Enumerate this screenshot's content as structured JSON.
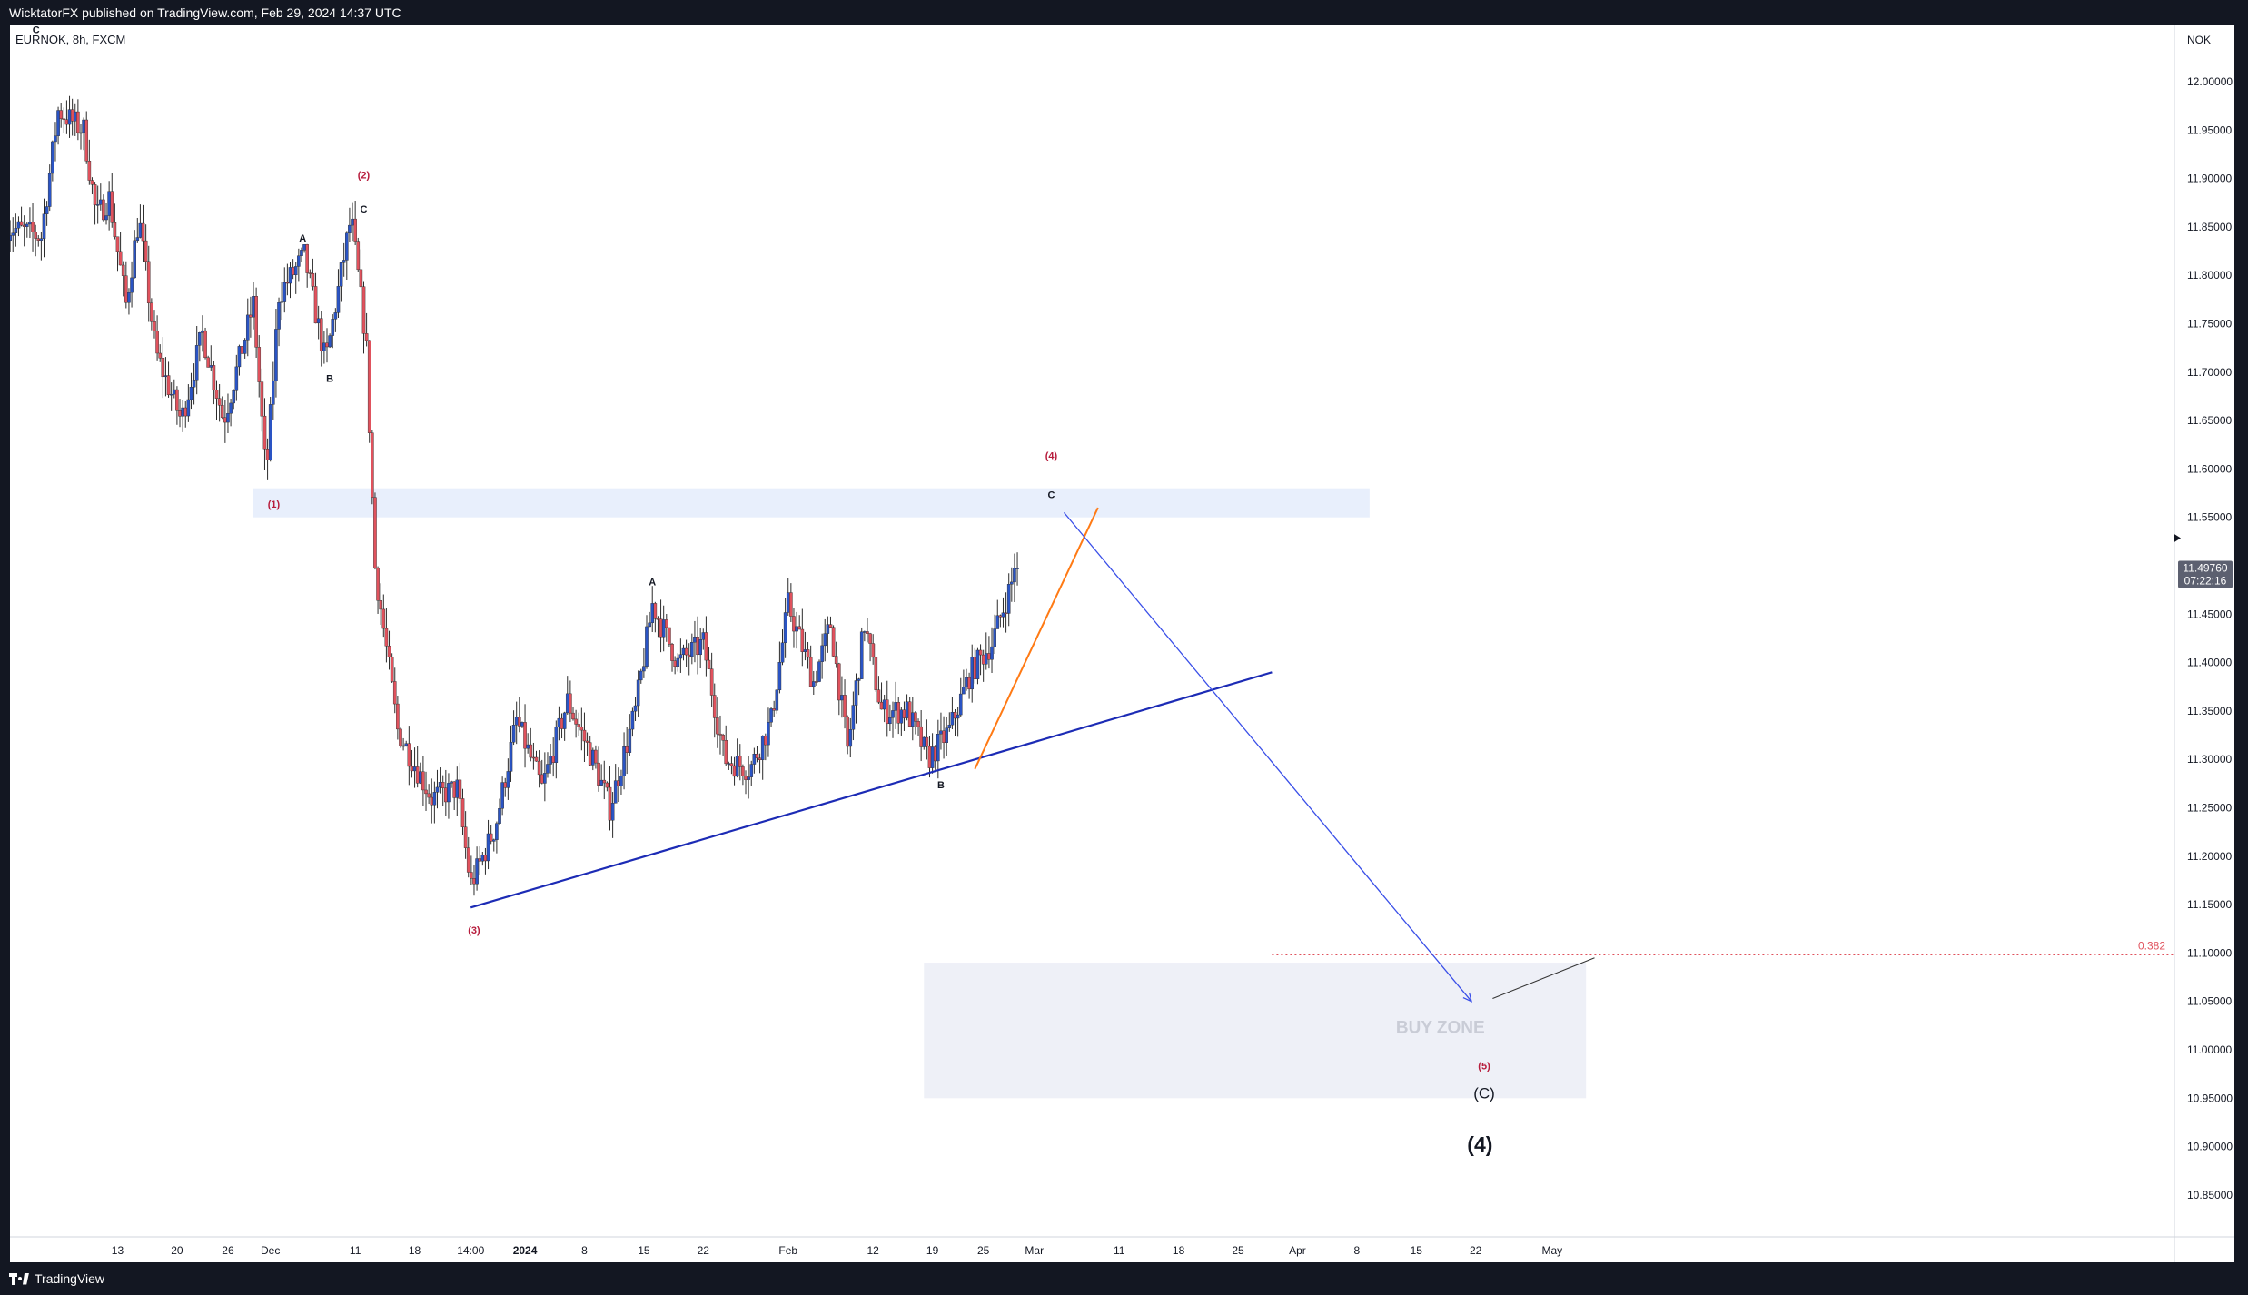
{
  "header": {
    "publisher_line": "WicktatorFX published on TradingView.com, Feb 29, 2024 14:37 UTC"
  },
  "footer": {
    "brand": "TradingView"
  },
  "chart_data": {
    "type": "candlestick",
    "symbol_label": "EURNOK, 8h, FXCM",
    "currency_label": "NOK",
    "ylim": [
      10.8,
      12.08
    ],
    "y_ticks": [
      "12.00000",
      "11.95000",
      "11.90000",
      "11.85000",
      "11.80000",
      "11.75000",
      "11.70000",
      "11.65000",
      "11.60000",
      "11.55000",
      "11.50000",
      "11.45000",
      "11.40000",
      "11.35000",
      "11.30000",
      "11.25000",
      "11.20000",
      "11.15000",
      "11.10000",
      "11.05000",
      "11.00000",
      "10.95000",
      "10.90000",
      "10.85000"
    ],
    "x_ticks": [
      {
        "label": "13",
        "day": 13
      },
      {
        "label": "20",
        "day": 20
      },
      {
        "label": "26",
        "day": 26
      },
      {
        "label": "Dec",
        "day": 31
      },
      {
        "label": "11",
        "day": 41
      },
      {
        "label": "18",
        "day": 48
      },
      {
        "label": "14:00",
        "day": 54.6
      },
      {
        "label": "2024",
        "day": 61
      },
      {
        "label": "8",
        "day": 68
      },
      {
        "label": "15",
        "day": 75
      },
      {
        "label": "22",
        "day": 82
      },
      {
        "label": "Feb",
        "day": 92
      },
      {
        "label": "12",
        "day": 102
      },
      {
        "label": "19",
        "day": 109
      },
      {
        "label": "25",
        "day": 115
      },
      {
        "label": "Mar",
        "day": 121
      },
      {
        "label": "11",
        "day": 131
      },
      {
        "label": "18",
        "day": 138
      },
      {
        "label": "25",
        "day": 145
      },
      {
        "label": "Apr",
        "day": 152
      },
      {
        "label": "8",
        "day": 159
      },
      {
        "label": "15",
        "day": 166
      },
      {
        "label": "22",
        "day": 173
      },
      {
        "label": "May",
        "day": 182
      }
    ],
    "current_price": {
      "label": "11.49760",
      "countdown": "07:22:16",
      "value": 11.4976
    },
    "colors": {
      "up": "#2a54c4",
      "down": "#e0525d",
      "wave_label": "#b71c3c",
      "trendline": "#1c2bb5",
      "orange": "#ff7a14",
      "projection": "#3a4fe8",
      "zone": "#eef0f7",
      "resistance_zone": "#e8effc",
      "fib": "#e0525d"
    },
    "candle_anchors": [
      {
        "day": 0,
        "price": 11.85
      },
      {
        "day": 4,
        "price": 11.84
      },
      {
        "day": 6,
        "price": 11.97
      },
      {
        "day": 9,
        "price": 11.95
      },
      {
        "day": 10.5,
        "price": 11.86
      },
      {
        "day": 12,
        "price": 11.88
      },
      {
        "day": 14,
        "price": 11.77
      },
      {
        "day": 15.5,
        "price": 11.86
      },
      {
        "day": 17.5,
        "price": 11.72
      },
      {
        "day": 20.5,
        "price": 11.65
      },
      {
        "day": 23,
        "price": 11.74
      },
      {
        "day": 25.5,
        "price": 11.65
      },
      {
        "day": 29,
        "price": 11.77
      },
      {
        "day": 30.5,
        "price": 11.59
      },
      {
        "day": 32,
        "price": 11.78
      },
      {
        "day": 35,
        "price": 11.82
      },
      {
        "day": 37.5,
        "price": 11.71
      },
      {
        "day": 40.5,
        "price": 11.86
      },
      {
        "day": 42.3,
        "price": 11.73
      },
      {
        "day": 43.3,
        "price": 11.5
      },
      {
        "day": 46,
        "price": 11.33
      },
      {
        "day": 50,
        "price": 11.26
      },
      {
        "day": 53,
        "price": 11.27
      },
      {
        "day": 54.6,
        "price": 11.17
      },
      {
        "day": 57.5,
        "price": 11.23
      },
      {
        "day": 60,
        "price": 11.34
      },
      {
        "day": 63,
        "price": 11.27
      },
      {
        "day": 66,
        "price": 11.36
      },
      {
        "day": 69,
        "price": 11.3
      },
      {
        "day": 71,
        "price": 11.25
      },
      {
        "day": 74,
        "price": 11.35
      },
      {
        "day": 76,
        "price": 11.46
      },
      {
        "day": 79,
        "price": 11.4
      },
      {
        "day": 82,
        "price": 11.42
      },
      {
        "day": 84.5,
        "price": 11.3
      },
      {
        "day": 87.5,
        "price": 11.29
      },
      {
        "day": 90,
        "price": 11.34
      },
      {
        "day": 92,
        "price": 11.46
      },
      {
        "day": 95,
        "price": 11.38
      },
      {
        "day": 97,
        "price": 11.44
      },
      {
        "day": 99,
        "price": 11.31
      },
      {
        "day": 101,
        "price": 11.44
      },
      {
        "day": 103,
        "price": 11.35
      },
      {
        "day": 106,
        "price": 11.35
      },
      {
        "day": 108.5,
        "price": 11.3
      },
      {
        "day": 111,
        "price": 11.33
      },
      {
        "day": 113.5,
        "price": 11.39
      },
      {
        "day": 116,
        "price": 11.42
      },
      {
        "day": 119,
        "price": 11.5
      }
    ],
    "annotations": [
      {
        "text": "C",
        "kind": "letter",
        "day": 3.4,
        "price": 12.05
      },
      {
        "text": "(2)",
        "kind": "wave",
        "day": 42,
        "price": 11.9
      },
      {
        "text": "C",
        "kind": "letter",
        "day": 42,
        "price": 11.865
      },
      {
        "text": "A",
        "kind": "letter",
        "day": 34.8,
        "price": 11.835
      },
      {
        "text": "B",
        "kind": "letter",
        "day": 38,
        "price": 11.69
      },
      {
        "text": "(1)",
        "kind": "wave",
        "day": 31.4,
        "price": 11.56
      },
      {
        "text": "(3)",
        "kind": "wave",
        "day": 55,
        "price": 11.12
      },
      {
        "text": "A",
        "kind": "letter",
        "day": 76,
        "price": 11.48
      },
      {
        "text": "(4)",
        "kind": "wave",
        "day": 123,
        "price": 11.61
      },
      {
        "text": "C",
        "kind": "letter",
        "day": 123,
        "price": 11.57
      },
      {
        "text": "B",
        "kind": "letter",
        "day": 110,
        "price": 11.27
      },
      {
        "text": "(5)",
        "kind": "wave",
        "day": 174,
        "price": 10.98
      },
      {
        "text": "(C)",
        "kind": "medium",
        "day": 174,
        "price": 10.95
      },
      {
        "text": "(4)",
        "kind": "large",
        "day": 173.5,
        "price": 10.895
      }
    ],
    "resistance_zone": {
      "day_from": 29,
      "day_to": 160.5,
      "price_low": 11.55,
      "price_high": 11.58
    },
    "buy_zone": {
      "label": "BUY ZONE",
      "day_from": 108,
      "day_to": 186,
      "price_low": 10.95,
      "price_high": 11.09
    },
    "fib_level": {
      "label": "0.382",
      "value": 11.098,
      "day_from": 149,
      "day_to": 186
    },
    "trendline": {
      "from": {
        "day": 54.6,
        "price": 11.147
      },
      "to": {
        "day": 149,
        "price": 11.39
      }
    },
    "orange_line": {
      "from": {
        "day": 114,
        "price": 11.29
      },
      "to": {
        "day": 128.5,
        "price": 11.56
      }
    },
    "projection": {
      "from": {
        "day": 124.5,
        "price": 11.555
      },
      "to": {
        "day": 172.5,
        "price": 11.05
      }
    },
    "projection_tail": {
      "from": {
        "day": 175,
        "price": 11.053
      },
      "to": {
        "day": 187,
        "price": 11.095
      }
    }
  }
}
